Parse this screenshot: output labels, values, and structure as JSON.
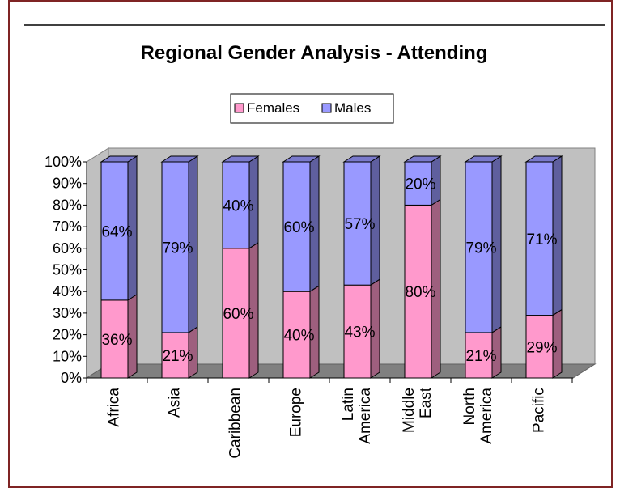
{
  "chart_data": {
    "type": "bar",
    "stacked": true,
    "percent": true,
    "title": "Regional Gender Analysis - Attending",
    "categories": [
      "Africa",
      "Asia",
      "Caribbean",
      "Europe",
      "Latin America",
      "Middle East",
      "North America",
      "Pacific"
    ],
    "category_lines": [
      [
        "Africa"
      ],
      [
        "Asia"
      ],
      [
        "Caribbean"
      ],
      [
        "Europe"
      ],
      [
        "Latin",
        "America"
      ],
      [
        "Middle",
        "East"
      ],
      [
        "North",
        "America"
      ],
      [
        "Pacific"
      ]
    ],
    "series": [
      {
        "name": "Females",
        "color": "#ff99cc",
        "values": [
          36,
          21,
          60,
          40,
          43,
          80,
          21,
          29
        ],
        "labels": [
          "36%",
          "21%",
          "60%",
          "40%",
          "43%",
          "80%",
          "21%",
          "29%"
        ]
      },
      {
        "name": "Males",
        "color": "#9999ff",
        "values": [
          64,
          79,
          40,
          60,
          57,
          20,
          79,
          71
        ],
        "labels": [
          "64%",
          "79%",
          "40%",
          "60%",
          "57%",
          "20%",
          "79%",
          "71%"
        ]
      }
    ],
    "ylim": [
      0,
      100
    ],
    "yticks": [
      "0%",
      "10%",
      "20%",
      "30%",
      "40%",
      "50%",
      "60%",
      "70%",
      "80%",
      "90%",
      "100%"
    ],
    "legend_position": "top",
    "grid": false,
    "wall_color": "#c0c0c0",
    "floor_color": "#808080"
  }
}
